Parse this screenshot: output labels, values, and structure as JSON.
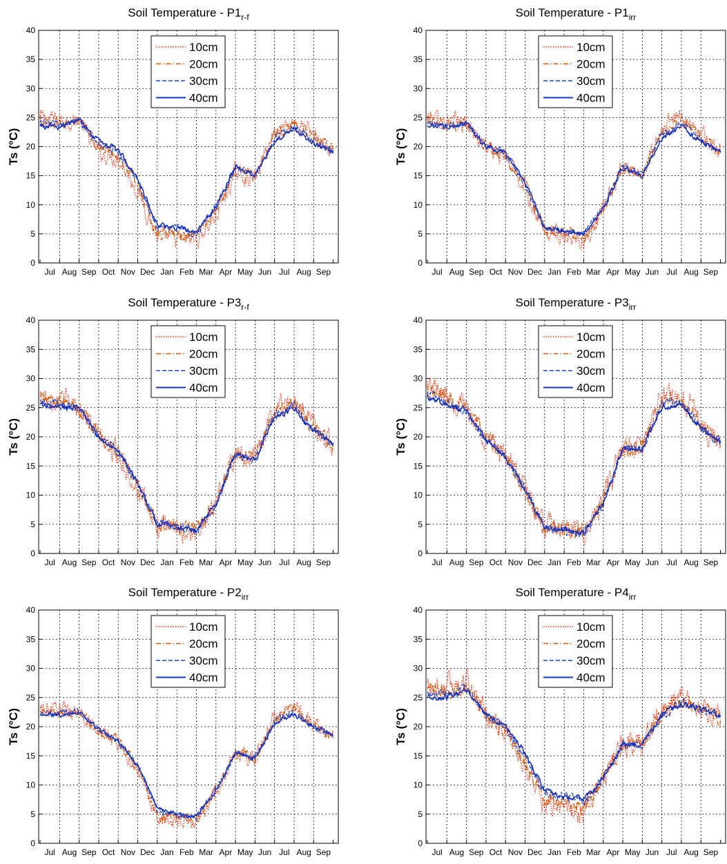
{
  "chart_data": [
    {
      "type": "line",
      "title": "Soil Temperature - P1",
      "title_subscript": "r-f",
      "ylabel": "Ts (°C)",
      "xlabel": "",
      "x_tick_labels": [
        "Jul",
        "Aug",
        "Sep",
        "Oct",
        "Nov",
        "Dec",
        "Jan",
        "Feb",
        "Mar",
        "Apr",
        "May",
        "Jun",
        "Jul",
        "Aug",
        "Sep"
      ],
      "ylim": [
        0,
        40
      ],
      "y_ticks": [
        0,
        5,
        10,
        15,
        20,
        25,
        30,
        35,
        40
      ],
      "grid": true,
      "legend_position": "top-center",
      "x_months": [
        0,
        1,
        2,
        3,
        4,
        5,
        6,
        7,
        8,
        9,
        10,
        11,
        12,
        13,
        14,
        15
      ],
      "series": [
        {
          "name": "10cm",
          "style": "dotted",
          "color": "#ff2a00",
          "values": [
            25.0,
            24.5,
            24.5,
            19.0,
            18.0,
            12.5,
            4.5,
            4.0,
            4.0,
            8.0,
            15.5,
            14.5,
            22.5,
            24.5,
            22.0,
            19.0
          ],
          "noise": 1.2
        },
        {
          "name": "20cm",
          "style": "dashdot",
          "color": "#d45500",
          "values": [
            24.5,
            24.0,
            24.5,
            20.0,
            18.5,
            13.5,
            5.0,
            5.0,
            4.5,
            9.0,
            16.0,
            15.0,
            22.0,
            24.0,
            21.5,
            19.0
          ],
          "noise": 0.8
        },
        {
          "name": "30cm",
          "style": "dashed",
          "color": "#1a44cc",
          "values": [
            24.0,
            23.8,
            24.5,
            20.5,
            19.0,
            14.0,
            6.0,
            6.0,
            5.0,
            9.5,
            16.5,
            15.0,
            21.5,
            23.5,
            21.0,
            19.0
          ],
          "noise": 0.5
        },
        {
          "name": "40cm",
          "style": "solid",
          "color": "#1a33bb",
          "values": [
            23.5,
            23.5,
            24.5,
            21.0,
            19.5,
            14.5,
            6.5,
            6.0,
            5.5,
            9.5,
            16.5,
            15.0,
            21.0,
            23.0,
            20.5,
            19.0
          ],
          "noise": 0.35
        }
      ]
    },
    {
      "type": "line",
      "title": "Soil Temperature - P1",
      "title_subscript": "irr",
      "ylabel": "Ts (°C)",
      "xlabel": "",
      "x_tick_labels": [
        "Jul",
        "Aug",
        "Sep",
        "Oct",
        "Nov",
        "Dec",
        "Jan",
        "Feb",
        "Mar",
        "Apr",
        "May",
        "Jun",
        "Jul",
        "Aug",
        "Sep"
      ],
      "ylim": [
        0,
        40
      ],
      "y_ticks": [
        0,
        5,
        10,
        15,
        20,
        25,
        30,
        35,
        40
      ],
      "grid": true,
      "legend_position": "top-center",
      "x_months": [
        0,
        1,
        2,
        3,
        4,
        5,
        6,
        7,
        8,
        9,
        10,
        11,
        12,
        13,
        14,
        15
      ],
      "series": [
        {
          "name": "10cm",
          "style": "dotted",
          "color": "#ff2a00",
          "values": [
            25.0,
            24.5,
            24.0,
            20.0,
            18.0,
            13.0,
            5.0,
            5.0,
            4.0,
            9.0,
            16.5,
            15.0,
            23.0,
            25.5,
            22.0,
            19.0
          ],
          "noise": 1.2
        },
        {
          "name": "20cm",
          "style": "dashdot",
          "color": "#d45500",
          "values": [
            24.5,
            24.0,
            24.0,
            20.0,
            18.5,
            13.5,
            5.5,
            5.5,
            4.5,
            9.0,
            16.5,
            15.0,
            22.5,
            24.5,
            21.5,
            19.0
          ],
          "noise": 0.8
        },
        {
          "name": "30cm",
          "style": "dashed",
          "color": "#1a44cc",
          "values": [
            24.0,
            23.5,
            24.0,
            20.0,
            19.0,
            13.5,
            6.0,
            5.5,
            5.0,
            9.5,
            16.5,
            15.0,
            22.0,
            24.0,
            21.0,
            19.0
          ],
          "noise": 0.5
        },
        {
          "name": "40cm",
          "style": "solid",
          "color": "#1a33bb",
          "values": [
            23.5,
            23.5,
            24.0,
            20.0,
            19.0,
            14.0,
            6.0,
            5.5,
            5.0,
            9.5,
            16.5,
            15.0,
            21.5,
            23.5,
            21.0,
            19.0
          ],
          "noise": 0.35
        }
      ]
    },
    {
      "type": "line",
      "title": "Soil Temperature - P3",
      "title_subscript": "r-f",
      "ylabel": "Ts (°C)",
      "xlabel": "",
      "x_tick_labels": [
        "Jul",
        "Aug",
        "Sep",
        "Oct",
        "Nov",
        "Dec",
        "Jan",
        "Feb",
        "Mar",
        "Apr",
        "May",
        "Jun",
        "Jul",
        "Aug",
        "Sep"
      ],
      "ylim": [
        0,
        40
      ],
      "y_ticks": [
        0,
        5,
        10,
        15,
        20,
        25,
        30,
        35,
        40
      ],
      "grid": true,
      "legend_position": "top-center",
      "x_months": [
        0,
        1,
        2,
        3,
        4,
        5,
        6,
        7,
        8,
        9,
        10,
        11,
        12,
        13,
        14,
        15
      ],
      "series": [
        {
          "name": "10cm",
          "style": "dotted",
          "color": "#ff2a00",
          "values": [
            27.0,
            26.5,
            25.5,
            20.0,
            17.0,
            11.0,
            4.5,
            4.0,
            3.5,
            9.0,
            17.0,
            16.5,
            25.0,
            26.5,
            22.0,
            18.5
          ],
          "noise": 1.5
        },
        {
          "name": "20cm",
          "style": "dashdot",
          "color": "#d45500",
          "values": [
            26.5,
            26.0,
            25.0,
            20.0,
            17.5,
            11.5,
            5.0,
            4.5,
            4.0,
            9.0,
            17.0,
            16.5,
            24.5,
            26.0,
            21.5,
            18.5
          ],
          "noise": 1.0
        },
        {
          "name": "30cm",
          "style": "dashed",
          "color": "#1a44cc",
          "values": [
            26.0,
            25.5,
            25.0,
            20.0,
            17.5,
            12.0,
            5.0,
            4.5,
            4.0,
            8.5,
            17.0,
            16.0,
            24.0,
            25.5,
            21.0,
            19.0
          ],
          "noise": 0.6
        },
        {
          "name": "40cm",
          "style": "solid",
          "color": "#1a33bb",
          "values": [
            25.5,
            25.0,
            25.0,
            20.0,
            17.5,
            12.0,
            5.0,
            4.5,
            4.0,
            8.5,
            17.0,
            16.0,
            23.5,
            25.0,
            21.0,
            19.0
          ],
          "noise": 0.4
        }
      ]
    },
    {
      "type": "line",
      "title": "Soil Temperature - P3",
      "title_subscript": "irr",
      "ylabel": "Ts (°C)",
      "xlabel": "",
      "x_tick_labels": [
        "Jul",
        "Aug",
        "Sep",
        "Oct",
        "Nov",
        "Dec",
        "Jan",
        "Feb",
        "Mar",
        "Apr",
        "May",
        "Jun",
        "Jul",
        "Aug",
        "Sep"
      ],
      "ylim": [
        0,
        40
      ],
      "y_ticks": [
        0,
        5,
        10,
        15,
        20,
        25,
        30,
        35,
        40
      ],
      "grid": true,
      "legend_position": "top-center",
      "x_months": [
        0,
        1,
        2,
        3,
        4,
        5,
        6,
        7,
        8,
        9,
        10,
        11,
        12,
        13,
        14,
        15
      ],
      "series": [
        {
          "name": "10cm",
          "style": "dotted",
          "color": "#ff2a00",
          "values": [
            29.0,
            27.0,
            25.0,
            20.0,
            17.0,
            11.0,
            4.5,
            4.0,
            3.5,
            9.0,
            18.0,
            18.0,
            27.0,
            27.0,
            22.5,
            18.5
          ],
          "noise": 1.6
        },
        {
          "name": "20cm",
          "style": "dashdot",
          "color": "#d45500",
          "values": [
            28.5,
            26.5,
            24.5,
            20.0,
            17.0,
            11.0,
            4.5,
            4.0,
            3.5,
            9.0,
            18.0,
            18.0,
            26.5,
            26.5,
            22.0,
            18.5
          ],
          "noise": 1.1
        },
        {
          "name": "30cm",
          "style": "dashed",
          "color": "#1a44cc",
          "values": [
            27.5,
            26.0,
            24.5,
            19.5,
            16.5,
            11.0,
            4.5,
            4.0,
            3.5,
            8.5,
            18.0,
            18.0,
            26.0,
            26.0,
            21.5,
            19.0
          ],
          "noise": 0.6
        },
        {
          "name": "40cm",
          "style": "solid",
          "color": "#1a33bb",
          "values": [
            27.0,
            25.5,
            24.5,
            19.5,
            16.5,
            11.0,
            4.5,
            4.0,
            3.5,
            8.5,
            18.0,
            18.0,
            25.0,
            25.5,
            21.5,
            19.0
          ],
          "noise": 0.4
        }
      ]
    },
    {
      "type": "line",
      "title": "Soil Temperature - P2",
      "title_subscript": "irr",
      "ylabel": "Ts (°C)",
      "xlabel": "",
      "x_tick_labels": [
        "Jul",
        "Aug",
        "Sep",
        "Oct",
        "Nov",
        "Dec",
        "Jan",
        "Feb",
        "Mar",
        "Apr",
        "May",
        "Jun",
        "Jul",
        "Aug",
        "Sep"
      ],
      "ylim": [
        0,
        40
      ],
      "y_ticks": [
        0,
        5,
        10,
        15,
        20,
        25,
        30,
        35,
        40
      ],
      "grid": true,
      "legend_position": "top-center",
      "x_months": [
        0,
        1,
        2,
        3,
        4,
        5,
        6,
        7,
        8,
        9,
        10,
        11,
        12,
        13,
        14,
        15
      ],
      "series": [
        {
          "name": "10cm",
          "style": "dotted",
          "color": "#ff2a00",
          "values": [
            23.0,
            23.0,
            22.5,
            19.5,
            17.0,
            12.5,
            4.5,
            4.0,
            3.5,
            9.0,
            15.5,
            14.5,
            21.5,
            23.5,
            20.5,
            18.0
          ],
          "noise": 1.1
        },
        {
          "name": "20cm",
          "style": "dashdot",
          "color": "#d45500",
          "values": [
            22.5,
            22.5,
            22.5,
            19.5,
            17.5,
            13.0,
            5.0,
            4.5,
            4.0,
            9.0,
            15.5,
            14.5,
            21.0,
            23.0,
            20.0,
            18.0
          ],
          "noise": 0.7
        },
        {
          "name": "30cm",
          "style": "dashed",
          "color": "#1a44cc",
          "values": [
            22.0,
            22.5,
            22.5,
            19.5,
            17.5,
            13.5,
            5.5,
            5.0,
            4.5,
            9.0,
            15.5,
            14.5,
            21.0,
            22.5,
            20.0,
            18.5
          ],
          "noise": 0.45
        },
        {
          "name": "40cm",
          "style": "solid",
          "color": "#1a33bb",
          "values": [
            22.0,
            22.0,
            22.5,
            19.5,
            17.5,
            13.5,
            6.0,
            5.0,
            4.5,
            9.0,
            15.5,
            14.5,
            20.5,
            22.0,
            20.0,
            18.5
          ],
          "noise": 0.3
        }
      ]
    },
    {
      "type": "line",
      "title": "Soil Temperature - P4",
      "title_subscript": "irr",
      "ylabel": "Ts (°C)",
      "xlabel": "",
      "x_tick_labels": [
        "Jul",
        "Aug",
        "Sep",
        "Oct",
        "Nov",
        "Dec",
        "Jan",
        "Feb",
        "Mar",
        "Apr",
        "May",
        "Jun",
        "Jul",
        "Aug",
        "Sep"
      ],
      "ylim": [
        0,
        40
      ],
      "y_ticks": [
        0,
        5,
        10,
        15,
        20,
        25,
        30,
        35,
        40
      ],
      "grid": true,
      "legend_position": "top-center",
      "x_months": [
        0,
        1,
        2,
        3,
        4,
        5,
        6,
        7,
        8,
        9,
        10,
        11,
        12,
        13,
        14,
        15
      ],
      "series": [
        {
          "name": "10cm",
          "style": "dotted",
          "color": "#ff2a00",
          "values": [
            27.0,
            27.0,
            28.0,
            22.0,
            19.0,
            13.0,
            6.5,
            6.0,
            5.0,
            11.0,
            17.0,
            17.0,
            23.0,
            24.5,
            23.0,
            21.5
          ],
          "noise": 1.6
        },
        {
          "name": "20cm",
          "style": "dashdot",
          "color": "#d45500",
          "values": [
            26.0,
            26.0,
            27.0,
            22.0,
            19.5,
            14.0,
            7.5,
            7.0,
            6.0,
            11.0,
            17.0,
            17.0,
            22.5,
            24.0,
            23.0,
            21.5
          ],
          "noise": 1.1
        },
        {
          "name": "30cm",
          "style": "dashed",
          "color": "#1a44cc",
          "values": [
            25.5,
            25.5,
            26.5,
            22.0,
            20.0,
            15.0,
            8.5,
            8.0,
            7.0,
            11.0,
            17.0,
            17.0,
            22.0,
            24.0,
            23.0,
            22.0
          ],
          "noise": 0.6
        },
        {
          "name": "40cm",
          "style": "solid",
          "color": "#1a33bb",
          "values": [
            25.0,
            25.0,
            26.5,
            22.0,
            20.0,
            15.5,
            9.0,
            8.0,
            7.5,
            11.0,
            17.0,
            17.0,
            22.0,
            24.0,
            23.0,
            22.0
          ],
          "noise": 0.4
        }
      ]
    }
  ]
}
